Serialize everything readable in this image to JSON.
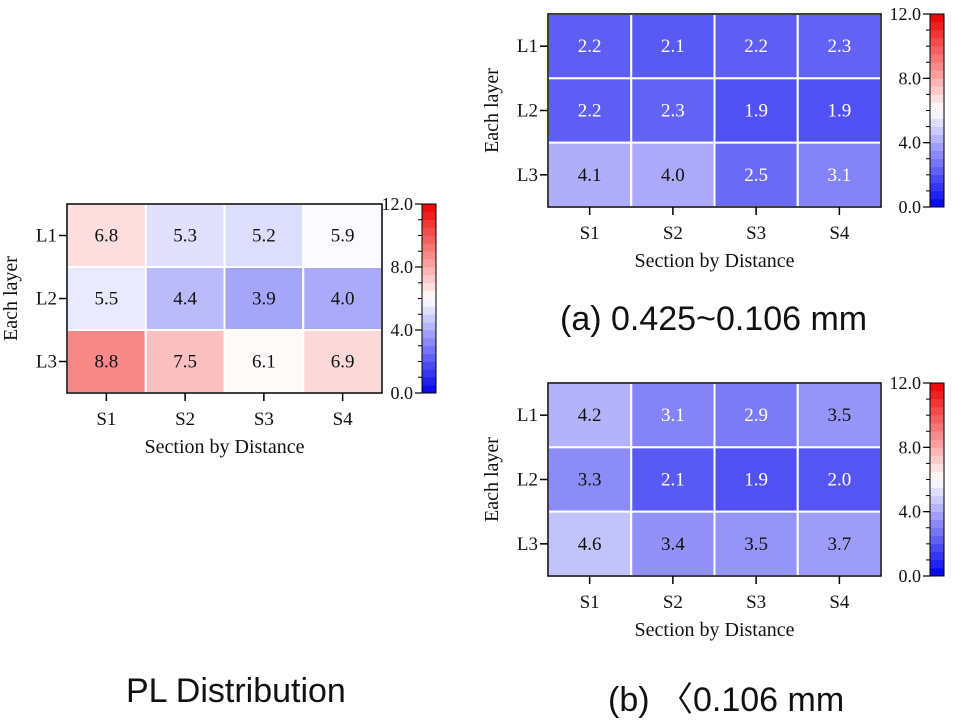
{
  "chart_data": [
    {
      "type": "heatmap",
      "id": "pl",
      "caption": "PL Distribution",
      "xlabel": "Section by Distance",
      "ylabel": "Each layer",
      "x_categories": [
        "S1",
        "S2",
        "S3",
        "S4"
      ],
      "y_categories": [
        "L1",
        "L2",
        "L3"
      ],
      "values": [
        [
          6.8,
          5.3,
          5.2,
          5.9
        ],
        [
          5.5,
          4.4,
          3.9,
          4.0
        ],
        [
          8.8,
          7.5,
          6.1,
          6.9
        ]
      ],
      "value_labels": [
        [
          "6.8",
          "5.3",
          "5.2",
          "5.9"
        ],
        [
          "5.5",
          "4.4",
          "3.9",
          "4.0"
        ],
        [
          "8.8",
          "7.5",
          "6.1",
          "6.9"
        ]
      ],
      "colorbar": {
        "range": [
          0,
          12
        ],
        "ticks": [
          "0.0",
          "4.0",
          "8.0",
          "12.0"
        ],
        "low_color": "#0000ee",
        "mid_color": "#ffffff",
        "high_color": "#ee0000"
      }
    },
    {
      "type": "heatmap",
      "id": "a",
      "caption": "(a) 0.425~0.106  mm",
      "xlabel": "Section by Distance",
      "ylabel": "Each layer",
      "x_categories": [
        "S1",
        "S2",
        "S3",
        "S4"
      ],
      "y_categories": [
        "L1",
        "L2",
        "L3"
      ],
      "values": [
        [
          2.2,
          2.1,
          2.2,
          2.3
        ],
        [
          2.2,
          2.3,
          1.9,
          1.9
        ],
        [
          4.1,
          4.0,
          2.5,
          3.1
        ]
      ],
      "value_labels": [
        [
          "2.2",
          "2.1",
          "2.2",
          "2.3"
        ],
        [
          "2.2",
          "2.3",
          "1.9",
          "1.9"
        ],
        [
          "4.1",
          "4.0",
          "2.5",
          "3.1"
        ]
      ],
      "colorbar": {
        "range": [
          0,
          12
        ],
        "ticks": [
          "0.0",
          "4.0",
          "8.0",
          "12.0"
        ],
        "low_color": "#0000ee",
        "mid_color": "#ffffff",
        "high_color": "#ee0000"
      }
    },
    {
      "type": "heatmap",
      "id": "b",
      "caption": "(b) 〈0.106  mm",
      "xlabel": "Section by Distance",
      "ylabel": "Each layer",
      "x_categories": [
        "S1",
        "S2",
        "S3",
        "S4"
      ],
      "y_categories": [
        "L1",
        "L2",
        "L3"
      ],
      "values": [
        [
          4.2,
          3.1,
          2.9,
          3.5
        ],
        [
          3.3,
          2.1,
          1.9,
          2.0
        ],
        [
          4.6,
          3.4,
          3.5,
          3.7
        ]
      ],
      "value_labels": [
        [
          "4.2",
          "3.1",
          "2.9",
          "3.5"
        ],
        [
          "3.3",
          "2.1",
          "1.9",
          "2.0"
        ],
        [
          "4.6",
          "3.4",
          "3.5",
          "3.7"
        ]
      ],
      "colorbar": {
        "range": [
          0,
          12
        ],
        "ticks": [
          "0.0",
          "4.0",
          "8.0",
          "12.0"
        ],
        "low_color": "#0000ee",
        "mid_color": "#ffffff",
        "high_color": "#ee0000"
      }
    }
  ]
}
